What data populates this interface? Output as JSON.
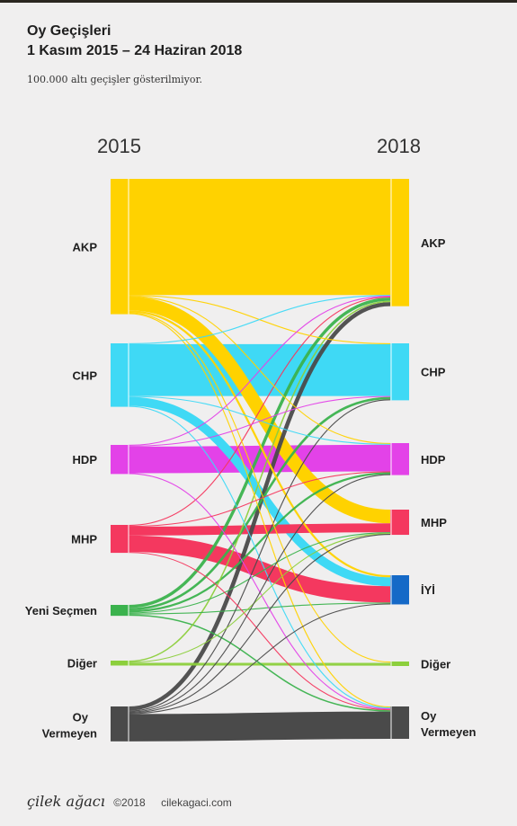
{
  "header": {
    "title": "Oy Geçişleri",
    "subtitle": "1 Kasım 2015 – 24 Haziran 2018",
    "note": "100.000 altı geçişler gösterilmiyor."
  },
  "footer": {
    "brand": "çilek ağacı",
    "copyright": "©2018",
    "site": "cilekagaci.com"
  },
  "chart_data": {
    "type": "sankey",
    "columns": [
      "2015",
      "2018"
    ],
    "left_nodes": [
      {
        "label": "AKP",
        "color": "#ffd200"
      },
      {
        "label": "CHP",
        "color": "#3fd9f5"
      },
      {
        "label": "HDP",
        "color": "#e342e8"
      },
      {
        "label": "MHP",
        "color": "#f4385f"
      },
      {
        "label": "Yeni Seçmen",
        "color": "#3bb24d"
      },
      {
        "label": "Diğer",
        "color": "#8ccf3c"
      },
      {
        "label": "Oy Vermeyen",
        "color": "#4a4a4a"
      }
    ],
    "right_nodes": [
      {
        "label": "AKP",
        "color": "#ffd200"
      },
      {
        "label": "CHP",
        "color": "#3fd9f5"
      },
      {
        "label": "HDP",
        "color": "#e342e8"
      },
      {
        "label": "MHP",
        "color": "#f4385f"
      },
      {
        "label": "İYİ",
        "color": "#1569c7"
      },
      {
        "label": "Diğer",
        "color": "#8ccf3c"
      },
      {
        "label": "Oy Vermeyen",
        "color": "#4a4a4a"
      }
    ],
    "links": [
      {
        "source": 0,
        "target": 0,
        "value": 17.0
      },
      {
        "source": 0,
        "target": 3,
        "value": 2.0
      },
      {
        "source": 0,
        "target": 4,
        "value": 0.3
      },
      {
        "source": 0,
        "target": 1,
        "value": 0.12
      },
      {
        "source": 0,
        "target": 2,
        "value": 0.12
      },
      {
        "source": 0,
        "target": 5,
        "value": 0.12
      },
      {
        "source": 0,
        "target": 6,
        "value": 0.15
      },
      {
        "source": 1,
        "target": 1,
        "value": 7.6
      },
      {
        "source": 1,
        "target": 4,
        "value": 1.3
      },
      {
        "source": 1,
        "target": 0,
        "value": 0.12
      },
      {
        "source": 1,
        "target": 2,
        "value": 0.12
      },
      {
        "source": 1,
        "target": 6,
        "value": 0.15
      },
      {
        "source": 2,
        "target": 2,
        "value": 3.9
      },
      {
        "source": 2,
        "target": 0,
        "value": 0.12
      },
      {
        "source": 2,
        "target": 1,
        "value": 0.12
      },
      {
        "source": 2,
        "target": 6,
        "value": 0.12
      },
      {
        "source": 3,
        "target": 3,
        "value": 1.3
      },
      {
        "source": 3,
        "target": 4,
        "value": 2.4
      },
      {
        "source": 3,
        "target": 0,
        "value": 0.15
      },
      {
        "source": 3,
        "target": 2,
        "value": 0.12
      },
      {
        "source": 3,
        "target": 6,
        "value": 0.12
      },
      {
        "source": 4,
        "target": 0,
        "value": 0.45
      },
      {
        "source": 4,
        "target": 1,
        "value": 0.35
      },
      {
        "source": 4,
        "target": 2,
        "value": 0.3
      },
      {
        "source": 4,
        "target": 3,
        "value": 0.15
      },
      {
        "source": 4,
        "target": 4,
        "value": 0.15
      },
      {
        "source": 4,
        "target": 6,
        "value": 0.2
      },
      {
        "source": 5,
        "target": 0,
        "value": 0.2
      },
      {
        "source": 5,
        "target": 5,
        "value": 0.4
      },
      {
        "source": 5,
        "target": 3,
        "value": 0.12
      },
      {
        "source": 6,
        "target": 6,
        "value": 4.0
      },
      {
        "source": 6,
        "target": 0,
        "value": 0.6
      },
      {
        "source": 6,
        "target": 1,
        "value": 0.15
      },
      {
        "source": 6,
        "target": 2,
        "value": 0.12
      },
      {
        "source": 6,
        "target": 3,
        "value": 0.12
      },
      {
        "source": 6,
        "target": 4,
        "value": 0.12
      }
    ]
  }
}
